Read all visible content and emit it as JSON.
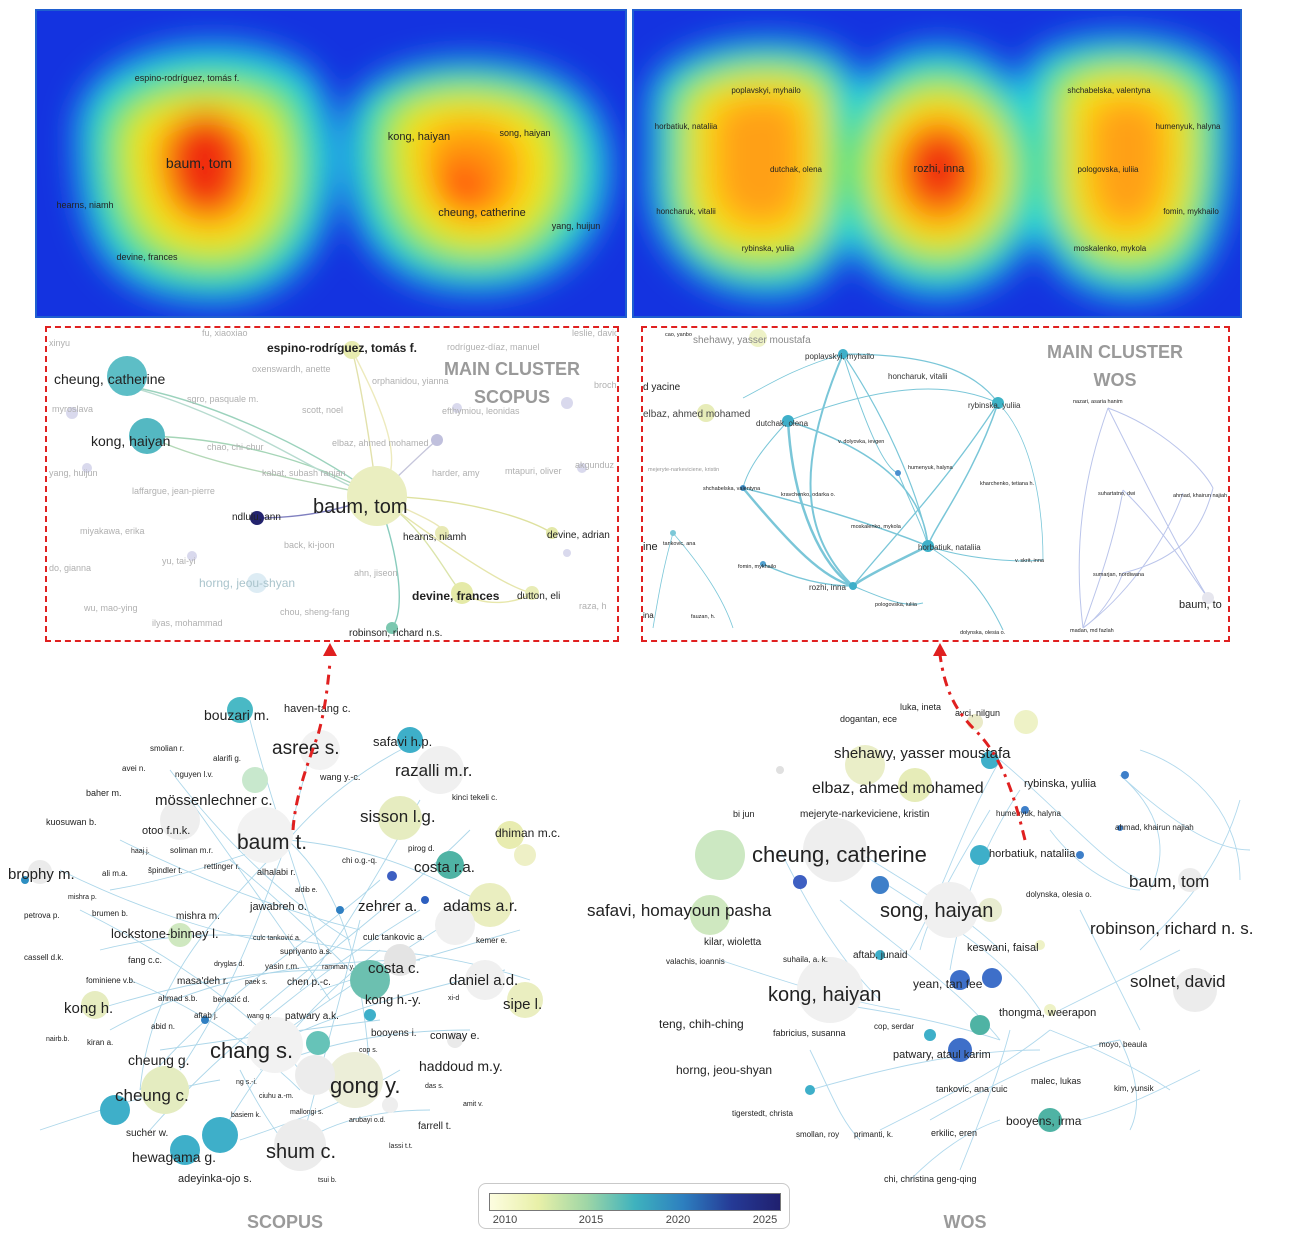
{
  "heatmap_scopus": {
    "labels": [
      {
        "text": "espino-rodríguez, tomás f."
      },
      {
        "text": "baum, tom"
      },
      {
        "text": "hearns, niamh"
      },
      {
        "text": "devine, frances"
      },
      {
        "text": "kong, haiyan"
      },
      {
        "text": "song, haiyan"
      },
      {
        "text": "cheung, catherine"
      },
      {
        "text": "yang, huijun"
      }
    ]
  },
  "heatmap_wos": {
    "labels": [
      {
        "text": "poplavskyi, myhailo"
      },
      {
        "text": "horbatiuk, nataliia"
      },
      {
        "text": "dutchak, olena"
      },
      {
        "text": "honcharuk, vitalii"
      },
      {
        "text": "rybinska, yuliia"
      },
      {
        "text": "rozhi, inna"
      },
      {
        "text": "shchabelska, valentyna"
      },
      {
        "text": "humenyuk, halyna"
      },
      {
        "text": "pologovska, iuliia"
      },
      {
        "text": "fomin, mykhailo"
      },
      {
        "text": "moskalenko, mykola"
      }
    ]
  },
  "main_scopus": {
    "title_line1": "MAIN CLUSTER",
    "title_line2": "SCOPUS",
    "labels": [
      {
        "text": "fu, xiaoxiao"
      },
      {
        "text": "rodríguez-díaz, manuel"
      },
      {
        "text": "leslie, david"
      },
      {
        "text": "xinyu"
      },
      {
        "text": "espino-rodríguez, tomás f."
      },
      {
        "text": "cheung, catherine"
      },
      {
        "text": "oxenswardh, anette"
      },
      {
        "text": "orphanidou, yianna"
      },
      {
        "text": "broch"
      },
      {
        "text": "myroslava"
      },
      {
        "text": "sgro, pasquale m."
      },
      {
        "text": "scott, noel"
      },
      {
        "text": "efthymiou, leonidas"
      },
      {
        "text": "kong, haiyan"
      },
      {
        "text": "chao, chi-chur"
      },
      {
        "text": "elbaz, ahmed mohamed"
      },
      {
        "text": "yang, huijun"
      },
      {
        "text": "kabat, subash ranjan"
      },
      {
        "text": "harder, amy"
      },
      {
        "text": "mtapuri, oliver"
      },
      {
        "text": "akgunduz"
      },
      {
        "text": "laffargue, jean-pierre"
      },
      {
        "text": "baum, tom"
      },
      {
        "text": "ndlulu, ann"
      },
      {
        "text": "miyakawa, erika"
      },
      {
        "text": "hearns, niamh"
      },
      {
        "text": "devine, adrian"
      },
      {
        "text": "back, ki-joon"
      },
      {
        "text": "yu, tai-yi"
      },
      {
        "text": "do, gianna"
      },
      {
        "text": "horng, jeou-shyan"
      },
      {
        "text": "ahn, jiseon"
      },
      {
        "text": "devine, frances"
      },
      {
        "text": "dutton, eli"
      },
      {
        "text": "wu, mao-ying"
      },
      {
        "text": "chou, sheng-fang"
      },
      {
        "text": "raza, h"
      },
      {
        "text": "ilyas, mohammad"
      },
      {
        "text": "robinson, richard n.s."
      }
    ]
  },
  "main_wos": {
    "title_line1": "MAIN CLUSTER",
    "title_line2": "WOS",
    "labels": [
      {
        "text": "cao, yanbo"
      },
      {
        "text": "shehawy, yasser moustafa"
      },
      {
        "text": "poplavskyi, myhailo"
      },
      {
        "text": "d yacine"
      },
      {
        "text": "honcharuk, vitalii"
      },
      {
        "text": "elbaz, ahmed mohamed"
      },
      {
        "text": "rybinska, yuliia"
      },
      {
        "text": "dutchak, olena"
      },
      {
        "text": "nazari, asaria hanim"
      },
      {
        "text": "v. dolyovka, ievgen"
      },
      {
        "text": "mejeryte-narkeviciene, kristin"
      },
      {
        "text": "humenyuk, halyna"
      },
      {
        "text": "kharchenko, tetiana h."
      },
      {
        "text": "shchabelska, valentyna"
      },
      {
        "text": "kravchenko, odarka o."
      },
      {
        "text": "suhartatno, dwi"
      },
      {
        "text": "ahmad, khairun najiah"
      },
      {
        "text": "moskalenko, mykola"
      },
      {
        "text": "ine"
      },
      {
        "text": "tankovic, ana"
      },
      {
        "text": "horbatiuk, nataliia"
      },
      {
        "text": "v. skrit, inna"
      },
      {
        "text": "fomin, mykhailo"
      },
      {
        "text": "rozhi, inna"
      },
      {
        "text": "sumarjan, nordiwana"
      },
      {
        "text": "baum, to"
      },
      {
        "text": "ina"
      },
      {
        "text": "fauzan, h."
      },
      {
        "text": "pologovska, iuliia"
      },
      {
        "text": "dolynska, olesia o."
      },
      {
        "text": "madan, md fazlah"
      }
    ]
  },
  "net_scopus": {
    "caption": "SCOPUS",
    "labels": [
      {
        "text": "bouzari m."
      },
      {
        "text": "haven-tang c."
      },
      {
        "text": "smolian r."
      },
      {
        "text": "alarifi g."
      },
      {
        "text": "asree s."
      },
      {
        "text": "safavi h.p."
      },
      {
        "text": "avei n."
      },
      {
        "text": "nguyen l.v."
      },
      {
        "text": "wang y.-c."
      },
      {
        "text": "razalli m.r."
      },
      {
        "text": "baher m."
      },
      {
        "text": "mössenlechner c."
      },
      {
        "text": "kinci tekeli c."
      },
      {
        "text": "kuosuwan b."
      },
      {
        "text": "sisson l.g."
      },
      {
        "text": "otoo f.n.k."
      },
      {
        "text": "dhiman m.c."
      },
      {
        "text": "haaj j."
      },
      {
        "text": "soliman m.r."
      },
      {
        "text": "baum t."
      },
      {
        "text": "pirog d."
      },
      {
        "text": "chi o.g.-q."
      },
      {
        "text": "brophy m."
      },
      {
        "text": "ali m.a."
      },
      {
        "text": "špindler t."
      },
      {
        "text": "rettinger r."
      },
      {
        "text": "alhalabi r."
      },
      {
        "text": "costa r.a."
      },
      {
        "text": "mishra p."
      },
      {
        "text": "aldib e."
      },
      {
        "text": "zehrer a."
      },
      {
        "text": "adams a.r."
      },
      {
        "text": "jawabreh o."
      },
      {
        "text": "petrova p."
      },
      {
        "text": "brumen b."
      },
      {
        "text": "mishra m."
      },
      {
        "text": "lockstone-binney l."
      },
      {
        "text": "culc tanković a."
      },
      {
        "text": "culc tankovic a."
      },
      {
        "text": "kemer e."
      },
      {
        "text": "supriyanto a.s."
      },
      {
        "text": "cassell d.k."
      },
      {
        "text": "fang c.c."
      },
      {
        "text": "dryglas d."
      },
      {
        "text": "yasin r.m."
      },
      {
        "text": "ramman y."
      },
      {
        "text": "costa c."
      },
      {
        "text": "fominiene v.b."
      },
      {
        "text": "masa'deh r."
      },
      {
        "text": "paek s."
      },
      {
        "text": "chen p.-c."
      },
      {
        "text": "daniel a.d."
      },
      {
        "text": "ahmad s.b."
      },
      {
        "text": "benazić d."
      },
      {
        "text": "kong h.-y."
      },
      {
        "text": "xi-d"
      },
      {
        "text": "sipe l."
      },
      {
        "text": "kong h."
      },
      {
        "text": "aftab j."
      },
      {
        "text": "wang q."
      },
      {
        "text": "patwary a.k."
      },
      {
        "text": "abid n."
      },
      {
        "text": "booyens i."
      },
      {
        "text": "conway e."
      },
      {
        "text": "nairb.b."
      },
      {
        "text": "kiran a."
      },
      {
        "text": "chang s."
      },
      {
        "text": "cheung g."
      },
      {
        "text": "cop s."
      },
      {
        "text": "haddoud m.y."
      },
      {
        "text": "gong y."
      },
      {
        "text": "ng s.-i."
      },
      {
        "text": "das s."
      },
      {
        "text": "cheung c."
      },
      {
        "text": "ciuhu a.-m."
      },
      {
        "text": "amit v."
      },
      {
        "text": "basiem k."
      },
      {
        "text": "mallongi s."
      },
      {
        "text": "arubayi o.d."
      },
      {
        "text": "farrell t."
      },
      {
        "text": "sucher w."
      },
      {
        "text": "lassi t.t."
      },
      {
        "text": "shum c."
      },
      {
        "text": "hewagama g."
      },
      {
        "text": "adeyinka-ojo s."
      },
      {
        "text": "tsui b."
      }
    ]
  },
  "net_wos": {
    "caption": "WOS",
    "labels": [
      {
        "text": "luka, ineta"
      },
      {
        "text": "avci, nilgun"
      },
      {
        "text": "dogantan, ece"
      },
      {
        "text": "shehawy, yasser moustafa"
      },
      {
        "text": "elbaz, ahmed mohamed"
      },
      {
        "text": "rybinska, yuliia"
      },
      {
        "text": "bi jun"
      },
      {
        "text": "mejeryte-narkeviciene, kristin"
      },
      {
        "text": "humenyuk, halyna"
      },
      {
        "text": "ahmad, khairun najiah"
      },
      {
        "text": "cheung, catherine"
      },
      {
        "text": "horbatiuk, nataliia"
      },
      {
        "text": "baum, tom"
      },
      {
        "text": "dolynska, olesia o."
      },
      {
        "text": "safavi, homayoun pasha"
      },
      {
        "text": "song, haiyan"
      },
      {
        "text": "robinson, richard n. s."
      },
      {
        "text": "kilar, wioletta"
      },
      {
        "text": "keswani, faisal"
      },
      {
        "text": "valachis, ioannis"
      },
      {
        "text": "suhaila, a. k."
      },
      {
        "text": "aftab, junaid"
      },
      {
        "text": "kong, haiyan"
      },
      {
        "text": "yean, tan fee"
      },
      {
        "text": "solnet, david"
      },
      {
        "text": "thongma, weerapon"
      },
      {
        "text": "teng, chih-ching"
      },
      {
        "text": "fabricius, susanna"
      },
      {
        "text": "cop, serdar"
      },
      {
        "text": "patwary, ataul karim"
      },
      {
        "text": "moyo, beaula"
      },
      {
        "text": "horng, jeou-shyan"
      },
      {
        "text": "malec, lukas"
      },
      {
        "text": "tankovic, ana cuic"
      },
      {
        "text": "kim, yunsik"
      },
      {
        "text": "tigerstedt, christa"
      },
      {
        "text": "booyens, irma"
      },
      {
        "text": "smollan, roy"
      },
      {
        "text": "primanti, k."
      },
      {
        "text": "erkilic, eren"
      },
      {
        "text": "chi, christina geng-qing"
      }
    ]
  },
  "legend": {
    "ticks": [
      "2010",
      "2015",
      "2020",
      "2025"
    ]
  },
  "colors": {
    "arrow": "#e02020",
    "box_border": "#e02020",
    "heatmap_frame": "#1f5fd0",
    "caption": "#9a9a9a"
  }
}
